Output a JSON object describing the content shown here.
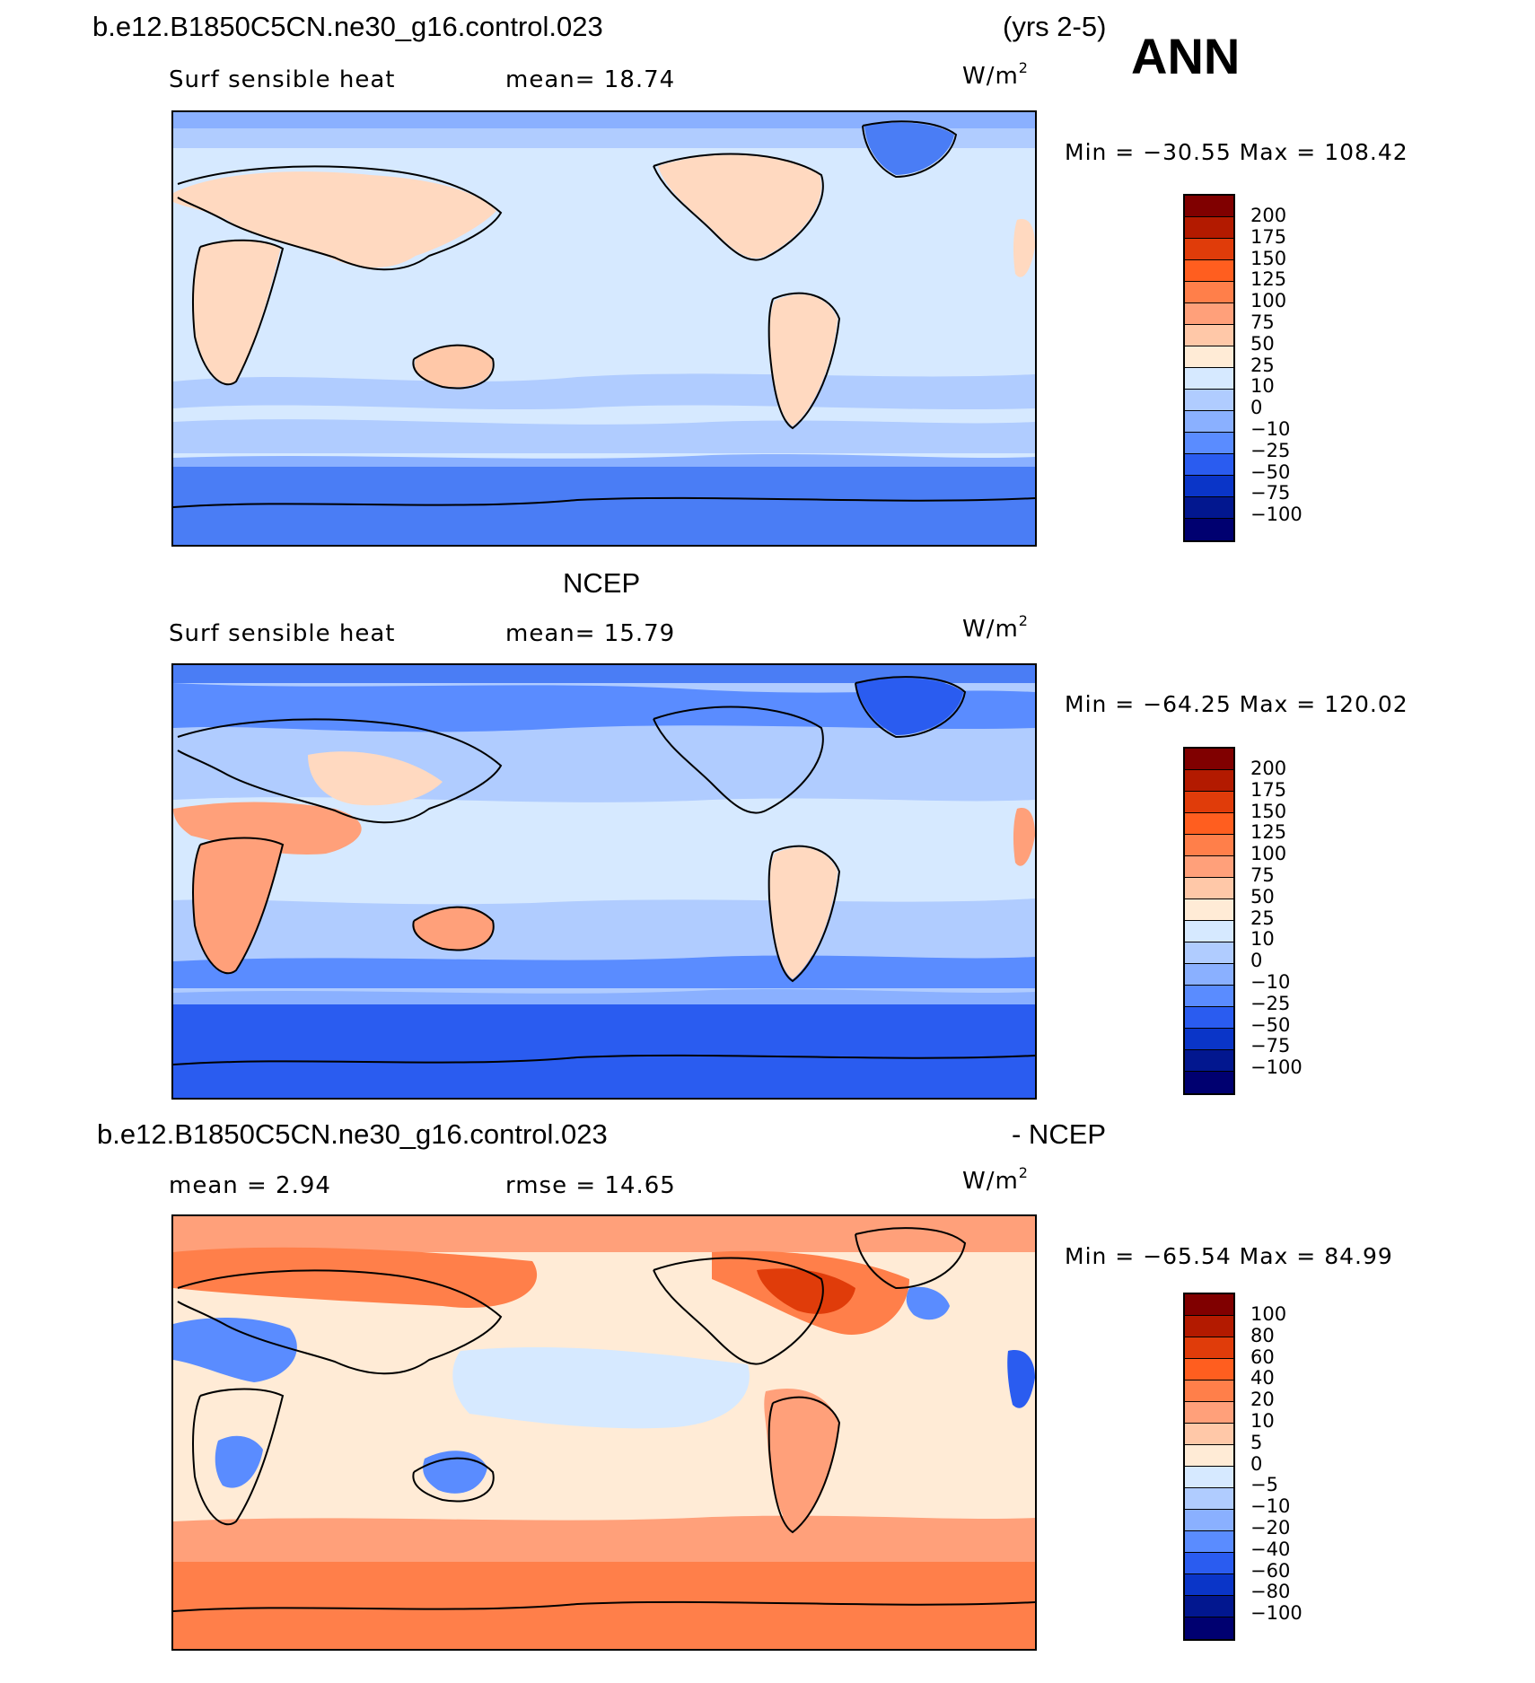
{
  "header": {
    "case_name": "b.e12.B1850C5CN.ne30_g16.control.023",
    "years": "(yrs 2-5)",
    "season": "ANN"
  },
  "panels": [
    {
      "id": "model",
      "variable": "Surf sensible heat",
      "stat_text": "mean=   18.74",
      "units_base": "W/m",
      "units_exp": "2",
      "minmax": "Min  =  −30.55  Max  =  108.42",
      "legend_levels": [
        "200",
        "175",
        "150",
        "125",
        "100",
        "75",
        "50",
        "25",
        "10",
        "0",
        "−10",
        "−25",
        "−50",
        "−75",
        "−100"
      ]
    },
    {
      "id": "obs",
      "title": "NCEP",
      "variable": "Surf sensible heat",
      "stat_text": "mean=   15.79",
      "units_base": "W/m",
      "units_exp": "2",
      "minmax": "Min  =  −64.25  Max  =  120.02",
      "legend_levels": [
        "200",
        "175",
        "150",
        "125",
        "100",
        "75",
        "50",
        "25",
        "10",
        "0",
        "−10",
        "−25",
        "−50",
        "−75",
        "−100"
      ]
    },
    {
      "id": "diff",
      "title_left": "b.e12.B1850C5CN.ne30_g16.control.023",
      "title_right": "- NCEP",
      "mean_text": "mean  =     2.94",
      "rmse_text": "rmse  =    14.65",
      "units_base": "W/m",
      "units_exp": "2",
      "minmax": "Min  =  −65.54  Max  =    84.99",
      "legend_levels": [
        "100",
        "80",
        "60",
        "40",
        "20",
        "10",
        "5",
        "0",
        "−5",
        "−10",
        "−20",
        "−40",
        "−60",
        "−80",
        "−100"
      ]
    }
  ],
  "colors": {
    "colorbar": [
      "#800000",
      "#b31a00",
      "#e03c0a",
      "#ff5e1f",
      "#ff7f4a",
      "#ffa07a",
      "#ffc8a8",
      "#ffebd6",
      "#d6e9ff",
      "#b0ccff",
      "#8ab0ff",
      "#5a8cff",
      "#2a5cf0",
      "#0a35c8",
      "#02178f",
      "#000070"
    ],
    "land_warm": "#ffd9c0",
    "ocean_light": "#d6e9ff",
    "polar_blue": "#4a7df5"
  }
}
